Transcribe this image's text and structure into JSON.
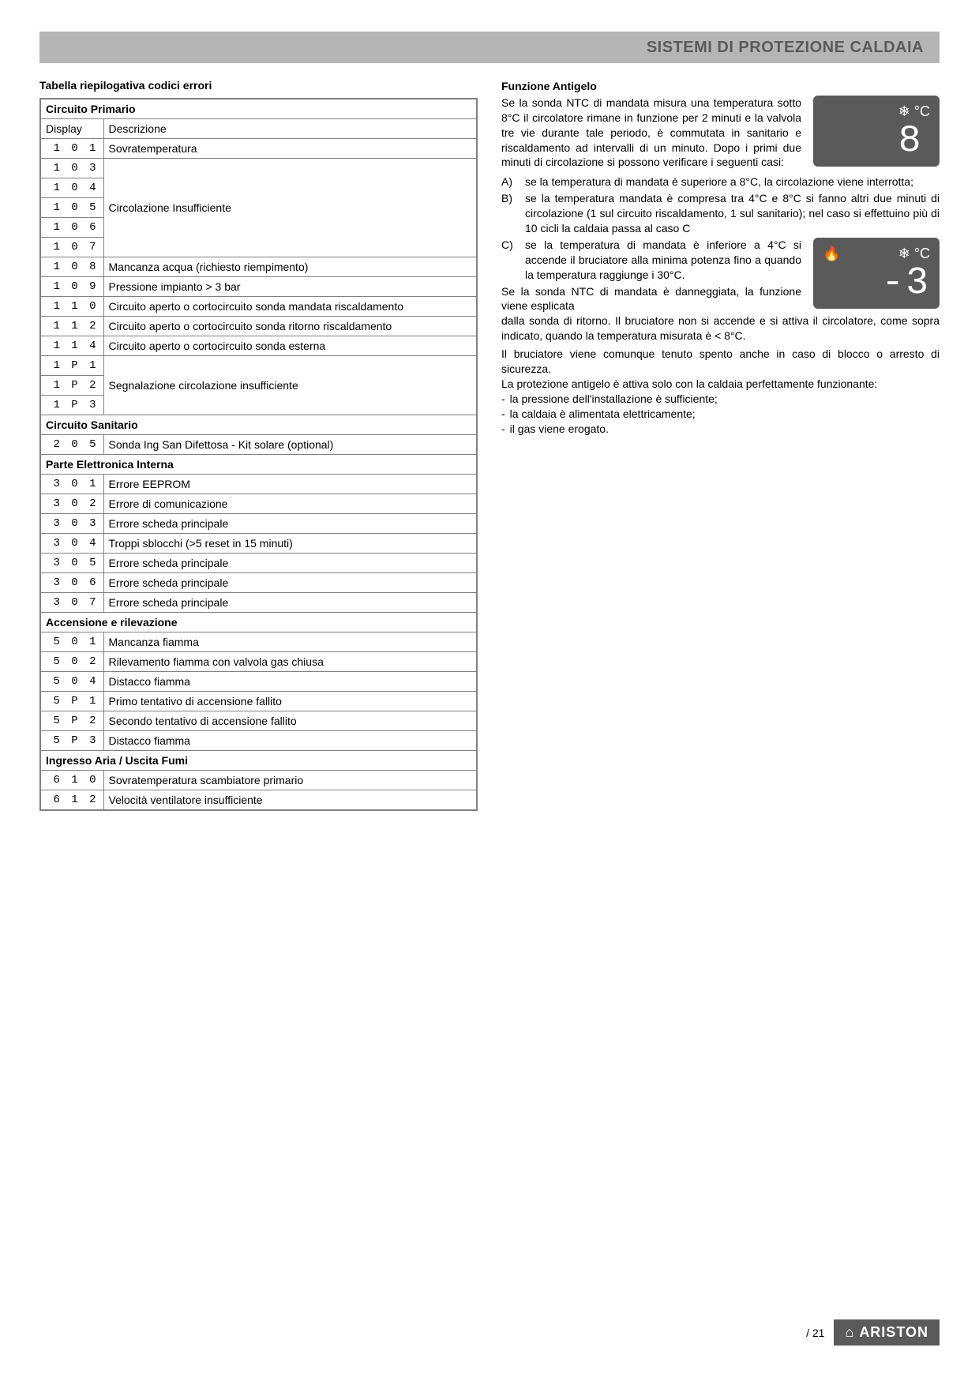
{
  "header": {
    "title": "SISTEMI DI PROTEZIONE CALDAIA"
  },
  "table": {
    "title": "Tabella riepilogativa codici errori",
    "col_display": "Display",
    "col_desc": "Descrizione",
    "groups": [
      {
        "name": "Circuito Primario",
        "rows": [
          {
            "codes": [
              "1 0 1"
            ],
            "desc": "Sovratemperatura"
          },
          {
            "codes": [
              "1 0 3",
              "1 0 4",
              "1 0 5",
              "1 0 6",
              "1 0 7"
            ],
            "desc": "Circolazione Insufficiente"
          },
          {
            "codes": [
              "1 0 8"
            ],
            "desc": "Mancanza acqua (richiesto riempimento)"
          },
          {
            "codes": [
              "1 0 9"
            ],
            "desc": "Pressione impianto > 3 bar"
          },
          {
            "codes": [
              "1 1 0"
            ],
            "desc": "Circuito aperto o cortocircuito sonda mandata riscaldamento"
          },
          {
            "codes": [
              "1 1 2"
            ],
            "desc": "Circuito aperto o cortocircuito sonda ritorno riscaldamento"
          },
          {
            "codes": [
              "1 1 4"
            ],
            "desc": "Circuito aperto o cortocircuito sonda esterna"
          },
          {
            "codes": [
              "1 P 1",
              "1 P 2",
              "1 P 3"
            ],
            "desc": "Segnalazione circolazione insufficiente"
          }
        ]
      },
      {
        "name": "Circuito Sanitario",
        "rows": [
          {
            "codes": [
              "2 0 5"
            ],
            "desc": "Sonda Ing San Difettosa - Kit solare  (optional)"
          }
        ]
      },
      {
        "name": "Parte Elettronica Interna",
        "rows": [
          {
            "codes": [
              "3 0 1"
            ],
            "desc": "Errore EEPROM"
          },
          {
            "codes": [
              "3 0 2"
            ],
            "desc": "Errore di comunicazione"
          },
          {
            "codes": [
              "3 0 3"
            ],
            "desc": "Errore scheda principale"
          },
          {
            "codes": [
              "3 0 4"
            ],
            "desc": "Troppi sblocchi (>5 reset in 15 minuti)"
          },
          {
            "codes": [
              "3 0 5"
            ],
            "desc": "Errore scheda principale"
          },
          {
            "codes": [
              "3 0 6"
            ],
            "desc": "Errore scheda principale"
          },
          {
            "codes": [
              "3 0 7"
            ],
            "desc": "Errore scheda principale"
          }
        ]
      },
      {
        "name": "Accensione e rilevazione",
        "rows": [
          {
            "codes": [
              "5 0 1"
            ],
            "desc": "Mancanza fiamma"
          },
          {
            "codes": [
              "5 0 2"
            ],
            "desc": "Rilevamento fiamma con valvola gas chiusa"
          },
          {
            "codes": [
              "5 0 4"
            ],
            "desc": "Distacco fiamma"
          },
          {
            "codes": [
              "5 P 1"
            ],
            "desc": "Primo tentativo di accensione fallito"
          },
          {
            "codes": [
              "5 P 2"
            ],
            "desc": "Secondo tentativo di accensione fallito"
          },
          {
            "codes": [
              "5 P 3"
            ],
            "desc": "Distacco fiamma"
          }
        ]
      },
      {
        "name": "Ingresso Aria / Uscita Fumi",
        "rows": [
          {
            "codes": [
              "6 1 0"
            ],
            "desc": "Sovratemperatura scambiatore primario"
          },
          {
            "codes": [
              "6 1 2"
            ],
            "desc": "Velocità ventilatore insufficiente"
          }
        ]
      }
    ]
  },
  "antigelo": {
    "title": "Funzione Antigelo",
    "intro": "Se la sonda NTC di mandata misura una temperatura sotto 8°C il circolatore rimane in funzione per 2 minuti e la valvola tre vie durante tale periodo, è commutata in sanitario e riscaldamento ad intervalli di un minuto. Dopo i primi due minuti di circolazione si possono verificare i seguenti casi:",
    "icon1": {
      "symbols": "❄ °C",
      "digit": "8"
    },
    "items": [
      {
        "label": "A)",
        "text": "se la temperatura di mandata è superiore a 8°C, la circolazione viene interrotta;"
      },
      {
        "label": "B)",
        "text": "se la temperatura mandata è compresa tra 4°C e 8°C si fanno altri due minuti di circolazione (1 sul circuito riscaldamento, 1 sul sanitario); nel caso si effettuino più di 10 cicli la caldaia passa al caso C"
      },
      {
        "label": "C)",
        "text": "se la temperatura di mandata è inferiore a 4°C si accende il bruciatore alla minima potenza fino a quando la temperatura raggiunge i 30°C."
      }
    ],
    "icon2": {
      "left": "🔥",
      "symbols": "❄ °C",
      "digit": "-3"
    },
    "after": "Se la sonda NTC di mandata è danneggiata, la funzione viene esplicata dalla sonda di ritorno. Il bruciatore non si accende e si attiva il circolatore, come sopra indicato, quando la temperatura misurata è < 8°C.",
    "p2": "Il bruciatore viene comunque tenuto spento anche in  caso di blocco o arresto di sicurezza.",
    "p3": "La protezione antigelo è attiva solo con la caldaia perfettamente funzionante:",
    "bullets": [
      "la pressione dell'installazione è sufficiente;",
      "la caldaia è alimentata elettricamente;",
      "il gas viene erogato."
    ]
  },
  "footer": {
    "page": "/ 21",
    "brand": "ARISTON"
  }
}
